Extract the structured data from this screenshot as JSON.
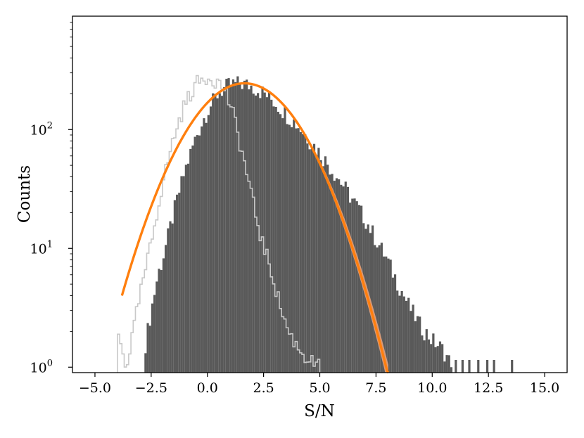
{
  "chart_data": {
    "type": "histogram",
    "xlabel": "S/N",
    "ylabel": "Counts",
    "xlim": [
      -6.0,
      16.0
    ],
    "ylim": [
      0.9,
      900
    ],
    "yscale": "log",
    "grid": false,
    "legend": "none",
    "x_ticks": [
      {
        "value": -5.0,
        "label": "−5.0"
      },
      {
        "value": -2.5,
        "label": "−2.5"
      },
      {
        "value": 0.0,
        "label": "0.0"
      },
      {
        "value": 2.5,
        "label": "2.5"
      },
      {
        "value": 5.0,
        "label": "5.0"
      },
      {
        "value": 7.5,
        "label": "7.5"
      },
      {
        "value": 10.0,
        "label": "10.0"
      },
      {
        "value": 12.5,
        "label": "12.5"
      },
      {
        "value": 15.0,
        "label": "15.0"
      }
    ],
    "y_ticks": [
      {
        "value": 1,
        "base": "10",
        "exp": "0"
      },
      {
        "value": 10,
        "base": "10",
        "exp": "1"
      },
      {
        "value": 100,
        "base": "10",
        "exp": "2"
      }
    ],
    "series": [
      {
        "kind": "filled-histogram",
        "color": "#595959",
        "bin_edges": [
          -2.8,
          10.9
        ],
        "bin_width": 0.1,
        "envelope": [
          [
            -2.8,
            1.4
          ],
          [
            -2.5,
            3
          ],
          [
            -2.2,
            6
          ],
          [
            -2.0,
            8
          ],
          [
            -1.5,
            20
          ],
          [
            -1.0,
            45
          ],
          [
            -0.5,
            88
          ],
          [
            0.0,
            145
          ],
          [
            0.5,
            205
          ],
          [
            1.0,
            240
          ],
          [
            1.5,
            245
          ],
          [
            2.0,
            232
          ],
          [
            2.5,
            205
          ],
          [
            3.0,
            170
          ],
          [
            4.0,
            110
          ],
          [
            5.0,
            64
          ],
          [
            6.0,
            35
          ],
          [
            7.0,
            18
          ],
          [
            8.0,
            8
          ],
          [
            8.5,
            5
          ],
          [
            9.0,
            3.2
          ],
          [
            9.5,
            2.2
          ],
          [
            10.0,
            1.7
          ],
          [
            10.5,
            1.4
          ],
          [
            10.9,
            1.0
          ]
        ],
        "isolated_bins": [
          [
            11.0,
            1
          ],
          [
            11.3,
            1
          ],
          [
            11.6,
            1
          ],
          [
            12.0,
            1
          ],
          [
            12.4,
            1
          ],
          [
            12.7,
            1
          ],
          [
            13.5,
            1
          ]
        ]
      },
      {
        "kind": "step-histogram",
        "color": "#c8c8c8",
        "bin_edges": [
          -4.0,
          5.0
        ],
        "bin_width": 0.1,
        "envelope": [
          [
            -4.0,
            2
          ],
          [
            -3.6,
            1
          ],
          [
            -3.0,
            4
          ],
          [
            -2.5,
            11
          ],
          [
            -2.0,
            35
          ],
          [
            -1.5,
            85
          ],
          [
            -1.0,
            165
          ],
          [
            -0.5,
            245
          ],
          [
            0.0,
            280
          ],
          [
            0.4,
            260
          ],
          [
            0.8,
            215
          ],
          [
            1.2,
            125
          ],
          [
            1.6,
            58
          ],
          [
            2.0,
            26
          ],
          [
            2.4,
            12
          ],
          [
            2.8,
            7
          ],
          [
            3.2,
            3.5
          ],
          [
            3.6,
            2
          ],
          [
            4.0,
            1.5
          ],
          [
            4.4,
            1.2
          ],
          [
            5.0,
            1.0
          ]
        ]
      },
      {
        "kind": "fit-curve",
        "color": "#ff7f0e",
        "band_color": "#f0a57a",
        "peak_x": 1.65,
        "peak_y": 245,
        "sigma": 1.9,
        "x_range": [
          -3.8,
          10.4
        ]
      }
    ]
  }
}
